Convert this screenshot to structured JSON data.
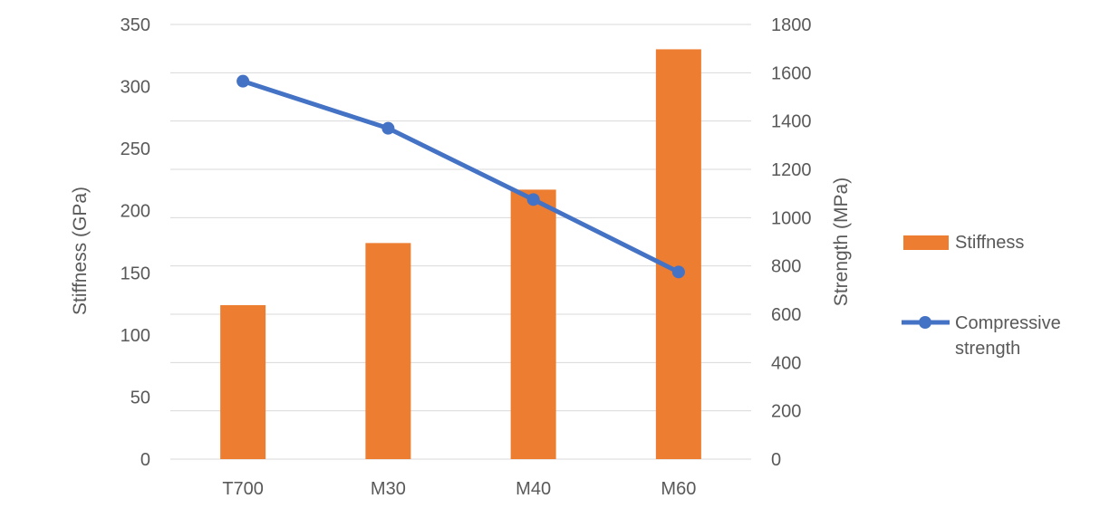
{
  "chart_data": {
    "type": "bar",
    "categories": [
      "T700",
      "M30",
      "M40",
      "M60"
    ],
    "series": [
      {
        "name": "Stiffness",
        "type": "bar",
        "axis": "left",
        "values": [
          124,
          174,
          217,
          330
        ],
        "color": "#ED7D31"
      },
      {
        "name_lines": [
          "Compressive",
          "strength"
        ],
        "type": "line",
        "axis": "right",
        "values": [
          1565,
          1370,
          1075,
          775
        ],
        "color": "#4472C4"
      }
    ],
    "y_left": {
      "label": "Stiffness (GPa)",
      "min": 0,
      "max": 350,
      "ticks": [
        "0",
        "50",
        "100",
        "150",
        "200",
        "250",
        "300",
        "350"
      ]
    },
    "y_right": {
      "label": "Strength (MPa)",
      "min": 0,
      "max": 1800,
      "ticks": [
        "0",
        "200",
        "400",
        "600",
        "800",
        "1000",
        "1200",
        "1400",
        "1600",
        "1800"
      ]
    },
    "grid": true,
    "legend_position": "right",
    "gridline_color": "#D9D9D9",
    "text_color": "#595959"
  }
}
